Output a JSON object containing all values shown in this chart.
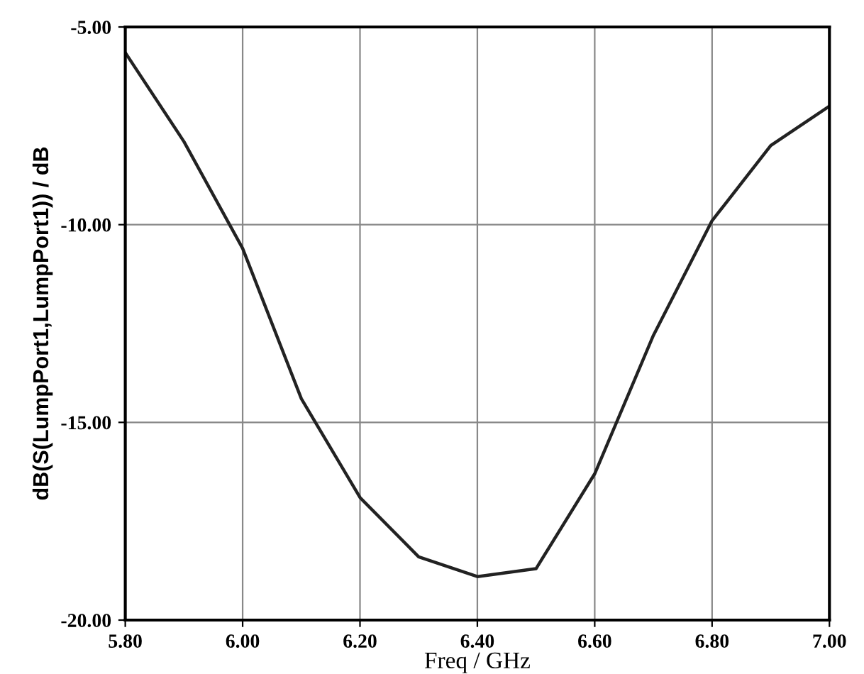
{
  "chart_data": {
    "type": "line",
    "xlabel": "Freq / GHz",
    "ylabel": "dB(S(LumpPort1,LumpPort1)) / dB",
    "x": [
      5.8,
      5.9,
      6.0,
      6.1,
      6.2,
      6.3,
      6.4,
      6.5,
      6.6,
      6.7,
      6.8,
      6.9,
      7.0
    ],
    "series": [
      {
        "color": "#222222",
        "values": [
          -5.65,
          -7.9,
          -10.6,
          -14.4,
          -16.9,
          -18.4,
          -18.9,
          -18.7,
          -16.3,
          -12.8,
          -9.9,
          -8.0,
          -7.0
        ]
      }
    ],
    "xlim": [
      5.8,
      7.0
    ],
    "ylim": [
      -20,
      -5
    ],
    "xticks": [
      {
        "value": 5.8,
        "label": "5.80"
      },
      {
        "value": 6.0,
        "label": "6.00"
      },
      {
        "value": 6.2,
        "label": "6.20"
      },
      {
        "value": 6.4,
        "label": "6.40"
      },
      {
        "value": 6.6,
        "label": "6.60"
      },
      {
        "value": 6.8,
        "label": "6.80"
      },
      {
        "value": 7.0,
        "label": "7.00"
      }
    ],
    "yticks": [
      {
        "value": -20,
        "label": "-20.00"
      },
      {
        "value": -15,
        "label": "-15.00"
      },
      {
        "value": -10,
        "label": "-10.00"
      },
      {
        "value": -5,
        "label": "-5.00"
      }
    ],
    "grid": true,
    "marker": "none",
    "line_style": "solid"
  }
}
